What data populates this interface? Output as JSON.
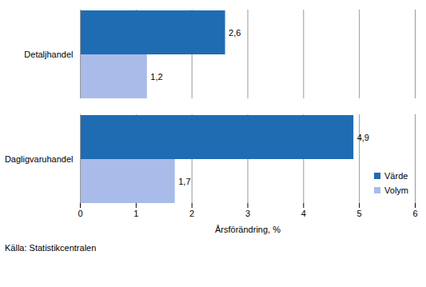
{
  "chart_data": {
    "type": "bar",
    "orientation": "horizontal",
    "categories": [
      "Detaljhandel",
      "Dagligvaruhandel"
    ],
    "series": [
      {
        "name": "Värde",
        "color": "#1f6cb3",
        "values": [
          2.6,
          4.9
        ],
        "value_labels": [
          "2,6",
          "4,9"
        ]
      },
      {
        "name": "Volym",
        "color": "#a8bbe9",
        "values": [
          1.2,
          1.7
        ],
        "value_labels": [
          "1,2",
          "1,7"
        ]
      }
    ],
    "x_label": "Årsförändring, %",
    "xlim": [
      0,
      6
    ],
    "xticks": [
      0,
      1,
      2,
      3,
      4,
      5,
      6
    ],
    "grid": true,
    "data_labels": true,
    "legend": "lower right",
    "source": "Källa: Statistikcentralen"
  }
}
